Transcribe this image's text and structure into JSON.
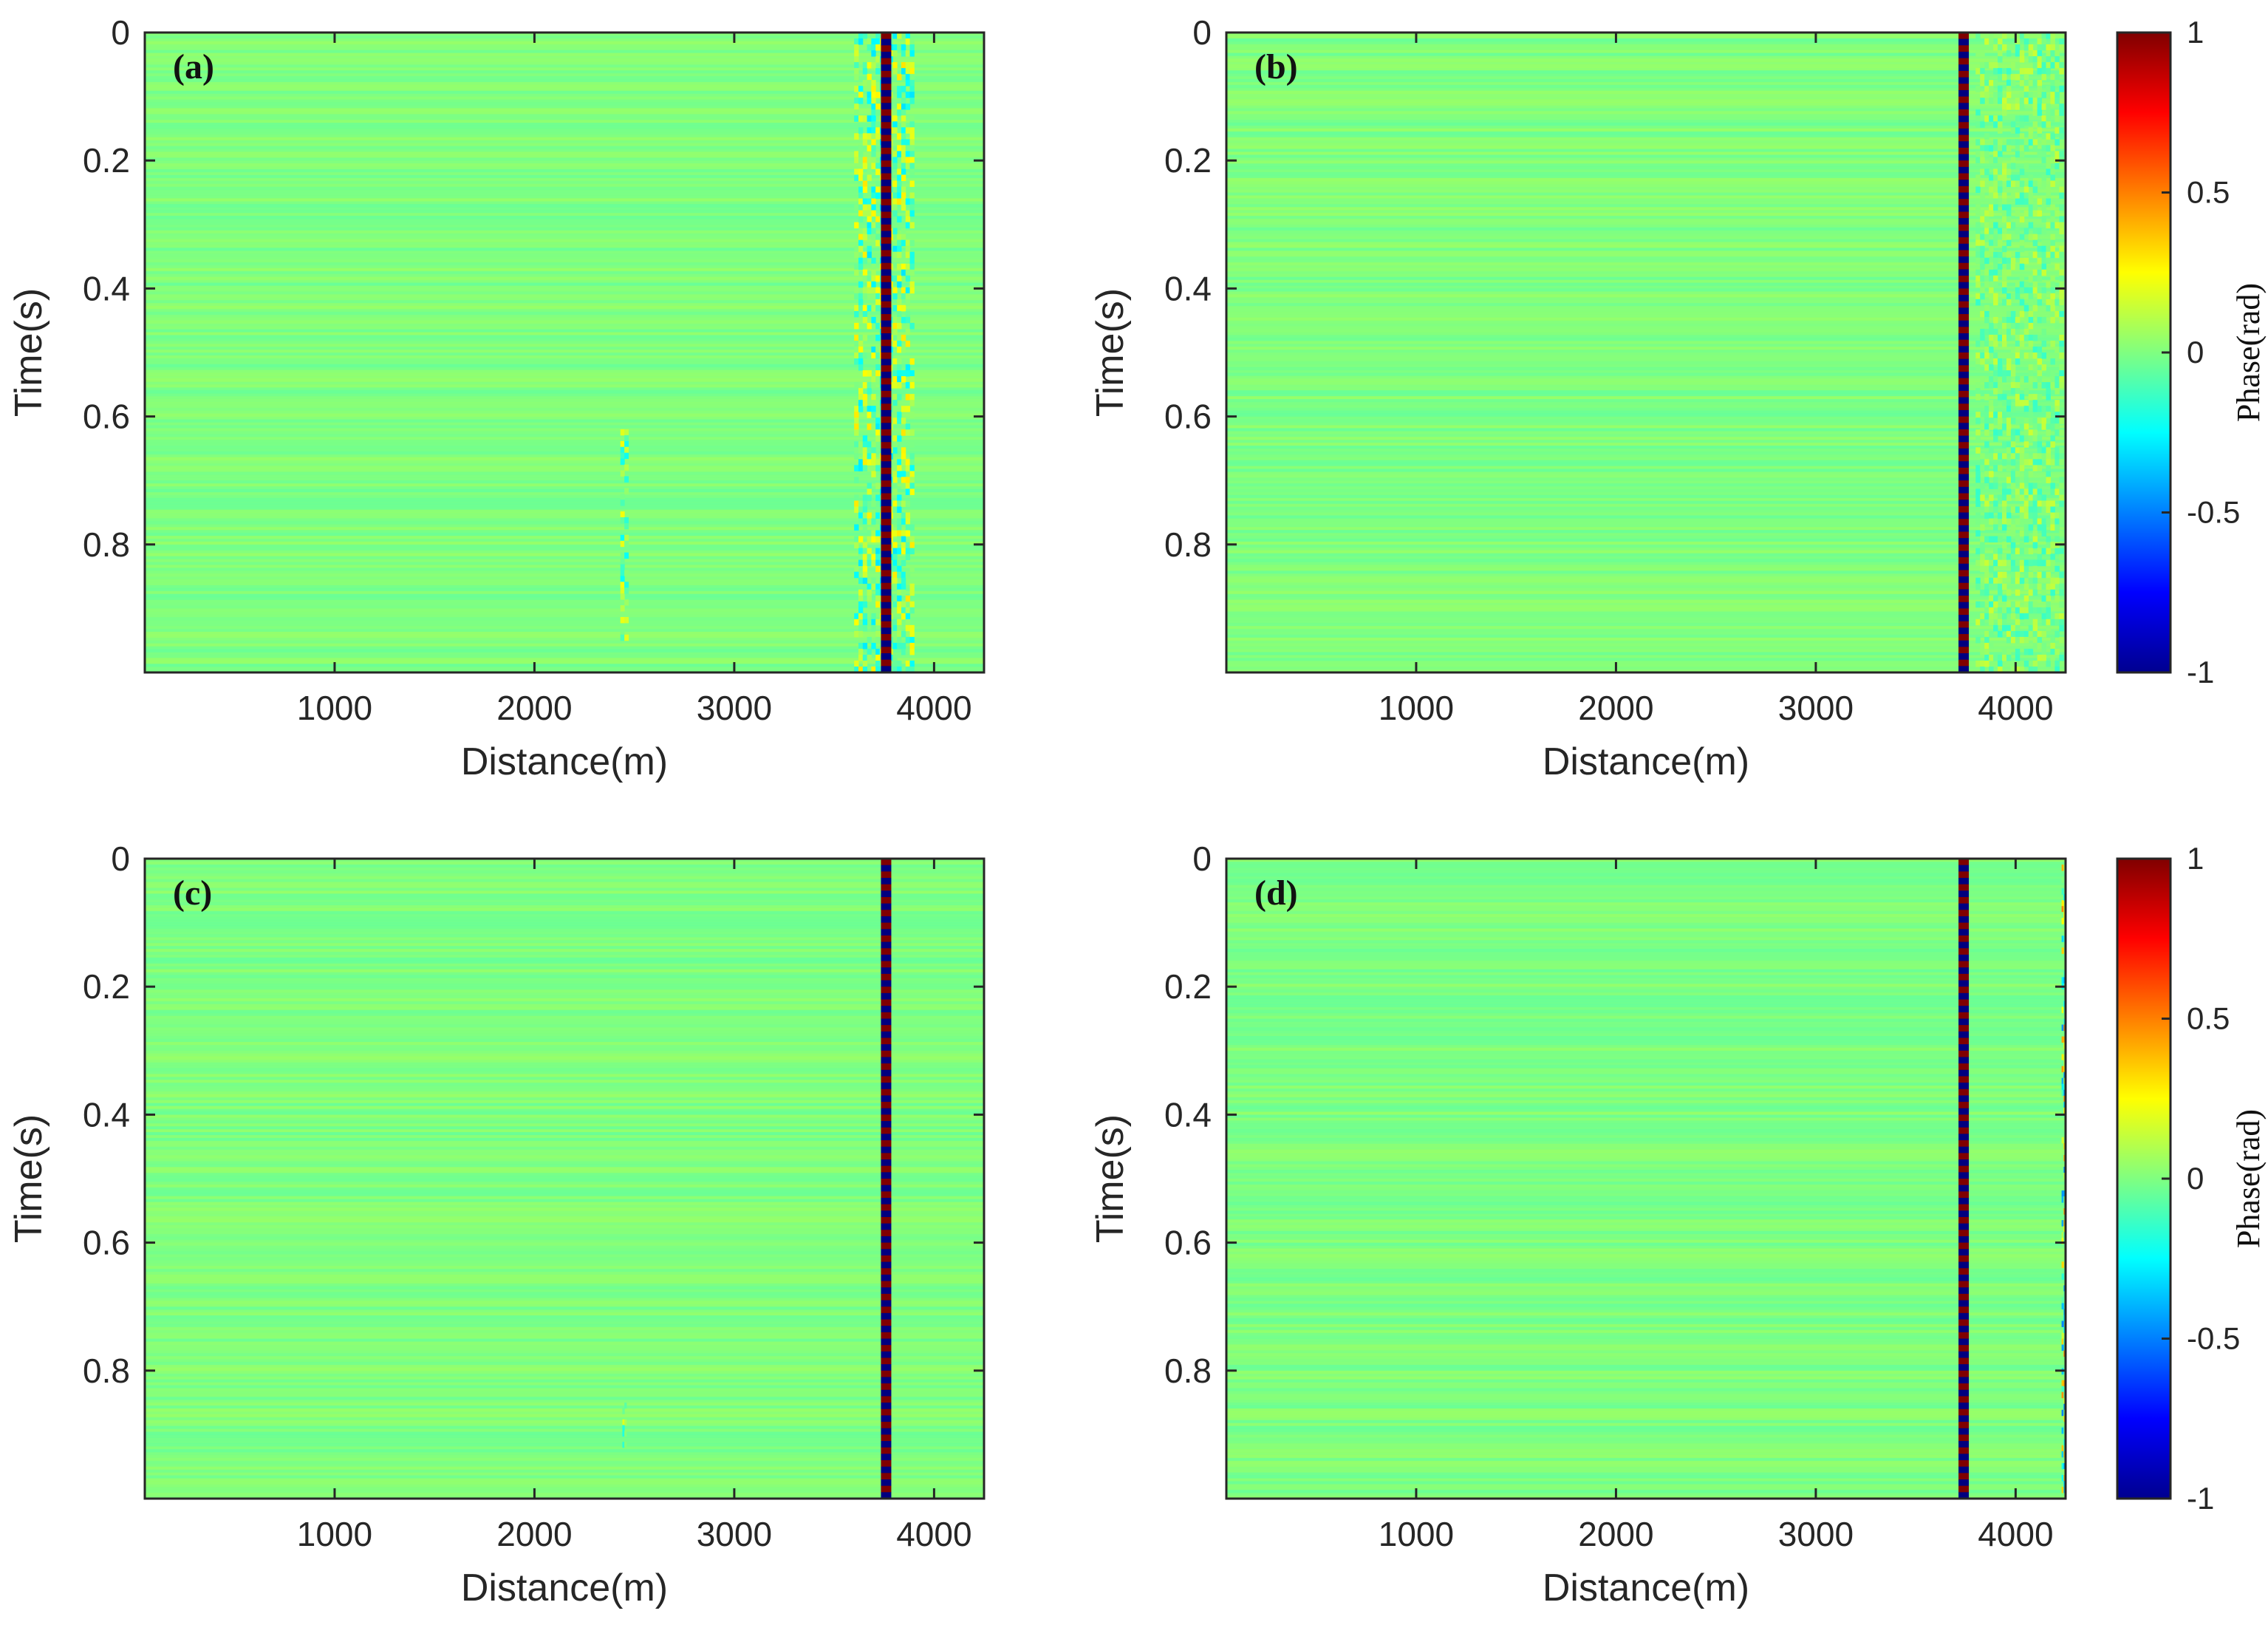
{
  "chart_data": [
    {
      "type": "heatmap",
      "panel_label": "(a)",
      "xlabel": "Distance(m)",
      "ylabel": "Time(s)",
      "xlim": [
        50,
        4250
      ],
      "ylim": [
        0,
        1
      ],
      "y_reversed": true,
      "xticks": [
        1000,
        2000,
        3000,
        4000
      ],
      "yticks": [
        0,
        0.2,
        0.4,
        0.6,
        0.8
      ],
      "background_value": 0,
      "strong_stripe": {
        "x_center": 3760,
        "amplitude": 1,
        "period_s": 0.02
      },
      "weak_noise": [
        {
          "x_from": 3600,
          "x_to": 3900,
          "t_from": 0,
          "t_to": 1,
          "amplitude": 0.3
        },
        {
          "x_from": 2430,
          "x_to": 2470,
          "t_from": 0.62,
          "t_to": 0.95,
          "amplitude": 0.25
        }
      ],
      "colorbar": null
    },
    {
      "type": "heatmap",
      "panel_label": "(b)",
      "xlabel": "Distance(m)",
      "ylabel": "Time(s)",
      "xlim": [
        50,
        4250
      ],
      "ylim": [
        0,
        1
      ],
      "y_reversed": true,
      "xticks": [
        1000,
        2000,
        3000,
        4000
      ],
      "yticks": [
        0,
        0.2,
        0.4,
        0.6,
        0.8
      ],
      "background_value": 0,
      "strong_stripe": {
        "x_center": 3740,
        "amplitude": 1,
        "period_s": 0.02
      },
      "weak_noise": [
        {
          "x_from": 3800,
          "x_to": 4240,
          "t_from": 0,
          "t_to": 1,
          "amplitude": 0.15
        }
      ],
      "colorbar": {
        "label": "Phase(rad)",
        "ticks": [
          1,
          0.5,
          0,
          -0.5,
          -1
        ],
        "tick_labels": [
          "1",
          "0.5",
          "0",
          "-0.5",
          "-1"
        ],
        "colormap": "jet"
      }
    },
    {
      "type": "heatmap",
      "panel_label": "(c)",
      "xlabel": "Distance(m)",
      "ylabel": "Time(s)",
      "xlim": [
        50,
        4250
      ],
      "ylim": [
        0,
        1
      ],
      "y_reversed": true,
      "xticks": [
        1000,
        2000,
        3000,
        4000
      ],
      "yticks": [
        0,
        0.2,
        0.4,
        0.6,
        0.8
      ],
      "background_value": 0,
      "strong_stripe": {
        "x_center": 3760,
        "amplitude": 1,
        "period_s": 0.02
      },
      "weak_noise": [
        {
          "x_from": 2440,
          "x_to": 2460,
          "t_from": 0.85,
          "t_to": 0.92,
          "amplitude": 0.2
        }
      ],
      "colorbar": null
    },
    {
      "type": "heatmap",
      "panel_label": "(d)",
      "xlabel": "Distance(m)",
      "ylabel": "Time(s)",
      "xlim": [
        50,
        4250
      ],
      "ylim": [
        0,
        1
      ],
      "y_reversed": true,
      "xticks": [
        1000,
        2000,
        3000,
        4000
      ],
      "yticks": [
        0,
        0.2,
        0.4,
        0.6,
        0.8
      ],
      "background_value": 0,
      "strong_stripe": {
        "x_center": 3740,
        "amplitude": 1,
        "period_s": 0.02
      },
      "weak_noise": [
        {
          "x_from": 4230,
          "x_to": 4250,
          "t_from": 0,
          "t_to": 1,
          "amplitude": 0.5
        }
      ],
      "colorbar": {
        "label": "Phase(rad)",
        "ticks": [
          1,
          0.5,
          0,
          -0.5,
          -1
        ],
        "tick_labels": [
          "1",
          "0.5",
          "0",
          "-0.5",
          "-1"
        ],
        "colormap": "jet"
      }
    }
  ]
}
